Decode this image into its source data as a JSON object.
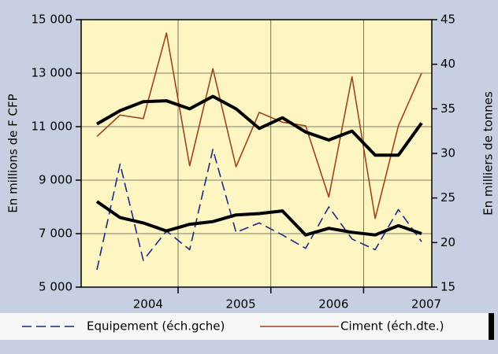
{
  "chart_data": {
    "type": "line",
    "y_label": "En millions de F CFP",
    "y2_label": "En milliers de tonnes",
    "categories": [
      null,
      null,
      "2004",
      null,
      null,
      null,
      "2005",
      null,
      null,
      null,
      "2006",
      null,
      null,
      null,
      "2007"
    ],
    "ylim": [
      5000,
      15000
    ],
    "yticks": [
      {
        "value": 5000,
        "label": "5 000"
      },
      {
        "value": 7000,
        "label": "7 000"
      },
      {
        "value": 9000,
        "label": "9 000"
      },
      {
        "value": 11000,
        "label": "11 000"
      },
      {
        "value": 13000,
        "label": "13 000"
      },
      {
        "value": 15000,
        "label": "15 000"
      }
    ],
    "y2lim": [
      15,
      45
    ],
    "y2ticks": [
      15,
      20,
      25,
      30,
      35,
      40,
      45
    ],
    "grid": true,
    "legend": "bottom",
    "series": [
      {
        "name": "Equipement (éch.gche)",
        "color": "#1c2a80",
        "dashed": true,
        "values": [
          5650,
          9600,
          6000,
          7100,
          6400,
          10150,
          7050,
          7400,
          6950,
          6450,
          8000,
          6800,
          6400,
          7900,
          6700
        ]
      },
      {
        "name": "Ciment (éch.dte.)",
        "color": "#a0441a",
        "axis": "y2",
        "values": [
          31.9,
          34.3,
          33.9,
          43.5,
          28.6,
          39.5,
          28.5,
          34.6,
          33.5,
          33.1,
          25.1,
          38.6,
          22.7,
          33.1,
          39.0
        ]
      },
      {
        "color": "#000000",
        "thick": true,
        "values": [
          8200,
          7600,
          7400,
          7100,
          7350,
          7450,
          7700,
          7750,
          7850,
          6950,
          7200,
          7050,
          6950,
          7300,
          7000
        ]
      },
      {
        "color": "#000000",
        "thick": true,
        "axis": "y2",
        "values": [
          33.3,
          34.8,
          35.8,
          35.9,
          35.0,
          36.4,
          35.0,
          32.8,
          34.0,
          32.4,
          31.5,
          32.5,
          29.8,
          29.8,
          33.4
        ]
      }
    ]
  }
}
